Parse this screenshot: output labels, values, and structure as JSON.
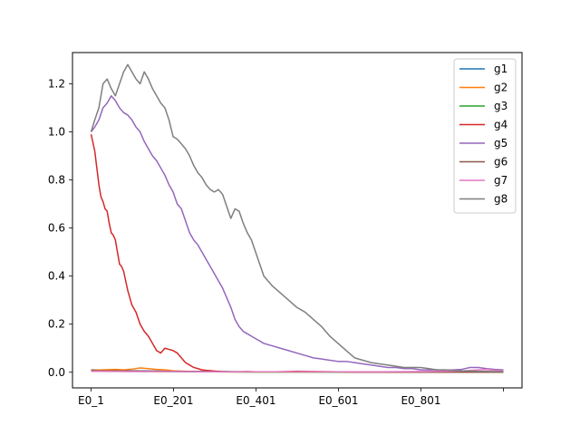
{
  "chart_data": {
    "type": "line",
    "title": "",
    "xlabel": "",
    "ylabel": "",
    "x_tick_labels": [
      "E0_1",
      "E0_201",
      "E0_401",
      "E0_601",
      "E0_801",
      ""
    ],
    "x_tick_values": [
      1,
      201,
      401,
      601,
      801,
      1001
    ],
    "xlim": [
      -44,
      1046
    ],
    "y_ticks": [
      0.0,
      0.2,
      0.4,
      0.6,
      0.8,
      1.0,
      1.2
    ],
    "y_tick_labels": [
      "0.0",
      "0.2",
      "0.4",
      "0.6",
      "0.8",
      "1.0",
      "1.2"
    ],
    "ylim": [
      -0.065,
      1.33
    ],
    "grid": false,
    "legend_position": "top-right",
    "series": [
      {
        "name": "g1",
        "color": "#1f77b4",
        "x": [
          1,
          50,
          100,
          150,
          200,
          300,
          400,
          500,
          600,
          700,
          800,
          900,
          1001
        ],
        "values": [
          0.01,
          0.008,
          0.006,
          0.005,
          0.004,
          0.003,
          0.002,
          0.002,
          0.001,
          0.001,
          0.001,
          0.001,
          0.001
        ]
      },
      {
        "name": "g2",
        "color": "#ff7f0e",
        "x": [
          1,
          30,
          60,
          80,
          100,
          120,
          140,
          160,
          180,
          200,
          250,
          300,
          400,
          600,
          800,
          1001
        ],
        "values": [
          0.008,
          0.01,
          0.012,
          0.01,
          0.013,
          0.018,
          0.015,
          0.012,
          0.01,
          0.006,
          0.003,
          0.002,
          0.001,
          0.001,
          0.001,
          0.001
        ]
      },
      {
        "name": "g3",
        "color": "#2ca02c",
        "x": [
          1,
          100,
          200,
          300,
          400,
          500,
          600,
          700,
          800,
          900,
          1001
        ],
        "values": [
          0.005,
          0.004,
          0.003,
          0.002,
          0.001,
          0.001,
          0.001,
          0.001,
          0.001,
          0.001,
          0.001
        ]
      },
      {
        "name": "g4",
        "color": "#d62728",
        "x": [
          1,
          5,
          10,
          15,
          20,
          25,
          30,
          35,
          40,
          45,
          50,
          55,
          60,
          65,
          70,
          75,
          80,
          85,
          90,
          95,
          100,
          110,
          120,
          130,
          140,
          150,
          160,
          170,
          180,
          190,
          200,
          210,
          220,
          230,
          240,
          250,
          260,
          270,
          280,
          300,
          320,
          340,
          360,
          380,
          400,
          450,
          500,
          550,
          600,
          650,
          700,
          800,
          900,
          1001
        ],
        "values": [
          0.99,
          0.96,
          0.92,
          0.85,
          0.78,
          0.73,
          0.71,
          0.68,
          0.67,
          0.62,
          0.58,
          0.57,
          0.55,
          0.5,
          0.45,
          0.44,
          0.42,
          0.38,
          0.34,
          0.31,
          0.28,
          0.25,
          0.2,
          0.17,
          0.15,
          0.12,
          0.09,
          0.08,
          0.1,
          0.095,
          0.09,
          0.08,
          0.06,
          0.04,
          0.03,
          0.02,
          0.015,
          0.01,
          0.008,
          0.005,
          0.003,
          0.002,
          0.002,
          0.003,
          0.002,
          0.002,
          0.004,
          0.003,
          0.002,
          0.001,
          0.001,
          0.001,
          0.001,
          0.001
        ]
      },
      {
        "name": "g5",
        "color": "#9467bd",
        "x": [
          1,
          10,
          20,
          30,
          40,
          50,
          60,
          70,
          80,
          90,
          100,
          110,
          120,
          130,
          140,
          150,
          160,
          170,
          180,
          190,
          200,
          210,
          220,
          230,
          240,
          250,
          260,
          270,
          280,
          290,
          300,
          310,
          320,
          330,
          340,
          350,
          360,
          370,
          380,
          390,
          400,
          410,
          420,
          440,
          460,
          480,
          500,
          520,
          540,
          560,
          580,
          600,
          620,
          640,
          660,
          680,
          700,
          720,
          740,
          760,
          780,
          800,
          820,
          840,
          860,
          880,
          900,
          920,
          940,
          960,
          980,
          1001
        ],
        "values": [
          1.0,
          1.02,
          1.05,
          1.1,
          1.12,
          1.15,
          1.13,
          1.1,
          1.08,
          1.07,
          1.05,
          1.02,
          1.0,
          0.96,
          0.93,
          0.9,
          0.88,
          0.85,
          0.82,
          0.78,
          0.75,
          0.7,
          0.68,
          0.63,
          0.58,
          0.55,
          0.53,
          0.5,
          0.47,
          0.44,
          0.41,
          0.38,
          0.35,
          0.31,
          0.27,
          0.22,
          0.19,
          0.17,
          0.16,
          0.15,
          0.14,
          0.13,
          0.12,
          0.11,
          0.1,
          0.09,
          0.08,
          0.07,
          0.06,
          0.055,
          0.05,
          0.045,
          0.045,
          0.04,
          0.035,
          0.03,
          0.025,
          0.02,
          0.02,
          0.015,
          0.015,
          0.01,
          0.01,
          0.01,
          0.008,
          0.01,
          0.012,
          0.02,
          0.02,
          0.015,
          0.012,
          0.01
        ]
      },
      {
        "name": "g6",
        "color": "#8c564b",
        "x": [
          1,
          100,
          200,
          300,
          400,
          500,
          600,
          700,
          800,
          900,
          1001
        ],
        "values": [
          0.006,
          0.005,
          0.004,
          0.003,
          0.002,
          0.002,
          0.002,
          0.001,
          0.001,
          0.001,
          0.001
        ]
      },
      {
        "name": "g7",
        "color": "#e377c2",
        "x": [
          1,
          100,
          200,
          300,
          400,
          500,
          600,
          700,
          800,
          900,
          940,
          960,
          980,
          1001
        ],
        "values": [
          0.004,
          0.003,
          0.003,
          0.002,
          0.002,
          0.002,
          0.002,
          0.002,
          0.003,
          0.005,
          0.01,
          0.012,
          0.008,
          0.006
        ]
      },
      {
        "name": "g8",
        "color": "#7f7f7f",
        "x": [
          1,
          10,
          20,
          30,
          40,
          50,
          60,
          70,
          80,
          90,
          100,
          110,
          120,
          130,
          140,
          150,
          160,
          170,
          180,
          190,
          200,
          210,
          220,
          230,
          240,
          250,
          260,
          270,
          280,
          290,
          300,
          310,
          320,
          330,
          340,
          350,
          360,
          370,
          380,
          390,
          400,
          410,
          420,
          440,
          460,
          480,
          500,
          520,
          540,
          560,
          580,
          600,
          620,
          640,
          660,
          680,
          700,
          720,
          740,
          760,
          780,
          800,
          820,
          840,
          860,
          880,
          900,
          920,
          940,
          960,
          980,
          1001
        ],
        "values": [
          1.0,
          1.05,
          1.1,
          1.2,
          1.22,
          1.18,
          1.15,
          1.2,
          1.25,
          1.28,
          1.25,
          1.22,
          1.2,
          1.25,
          1.22,
          1.18,
          1.15,
          1.12,
          1.1,
          1.05,
          0.98,
          0.97,
          0.95,
          0.93,
          0.9,
          0.86,
          0.83,
          0.81,
          0.78,
          0.76,
          0.75,
          0.76,
          0.74,
          0.69,
          0.64,
          0.68,
          0.67,
          0.62,
          0.58,
          0.55,
          0.5,
          0.45,
          0.4,
          0.36,
          0.33,
          0.3,
          0.27,
          0.25,
          0.22,
          0.19,
          0.15,
          0.12,
          0.09,
          0.06,
          0.05,
          0.04,
          0.035,
          0.03,
          0.025,
          0.02,
          0.02,
          0.02,
          0.015,
          0.01,
          0.01,
          0.008,
          0.006,
          0.005,
          0.004,
          0.004,
          0.003,
          0.003
        ]
      }
    ]
  }
}
